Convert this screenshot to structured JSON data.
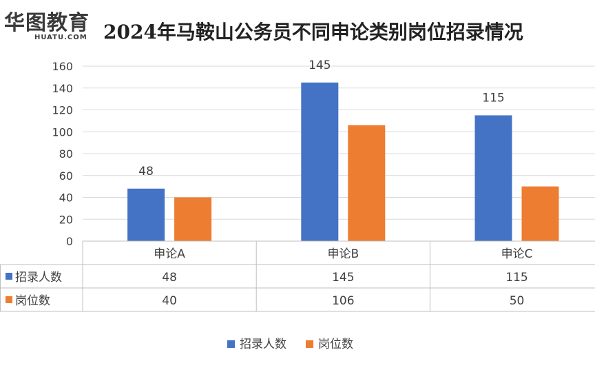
{
  "logo": {
    "main": "华图教育",
    "sub": "HUATU.COM"
  },
  "chart_data": {
    "type": "bar",
    "title": "2024年马鞍山公务员不同申论类别岗位招录情况",
    "categories": [
      "申论A",
      "申论B",
      "申论C"
    ],
    "series": [
      {
        "name": "招录人数",
        "values": [
          48,
          145,
          115
        ],
        "color": "#4472C4"
      },
      {
        "name": "岗位数",
        "values": [
          40,
          106,
          50
        ],
        "color": "#ED7D31"
      }
    ],
    "data_labels": {
      "series": 0
    },
    "ylim": [
      0,
      160
    ],
    "yticks": [
      "0",
      "20",
      "40",
      "60",
      "80",
      "100",
      "120",
      "140",
      "160"
    ],
    "grid": true,
    "legend": "bottom",
    "data_table": true
  }
}
